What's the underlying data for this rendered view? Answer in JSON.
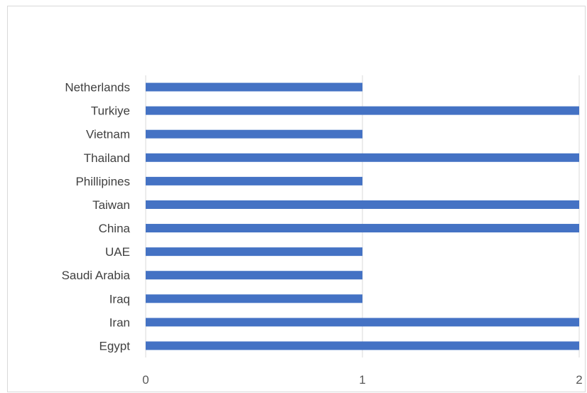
{
  "chart_data": {
    "type": "bar",
    "orientation": "horizontal",
    "title": "",
    "xlabel": "",
    "ylabel": "",
    "categories": [
      "Egypt",
      "Iran",
      "Iraq",
      "Saudi Arabia",
      "UAE",
      "China",
      "Taiwan",
      "Phillipines",
      "Thailand",
      "Vietnam",
      "Turkiye",
      "Netherlands"
    ],
    "values": [
      2,
      2,
      1,
      1,
      1,
      2,
      2,
      1,
      2,
      1,
      2,
      1
    ],
    "xlim": [
      0,
      2
    ],
    "xticks": [
      "0",
      "1",
      "2"
    ],
    "grid": "vertical",
    "legend": "none",
    "bar_color": "#4472C4",
    "grid_color": "#d9d9d9"
  }
}
